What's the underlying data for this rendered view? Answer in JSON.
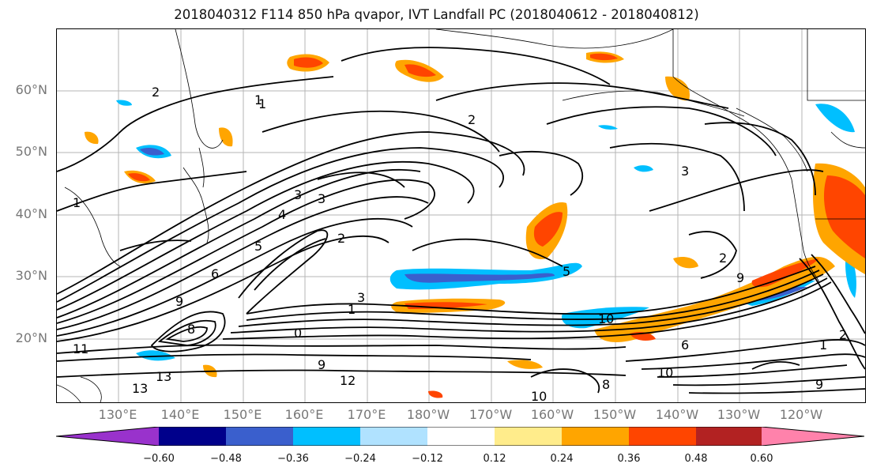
{
  "title": "2018040312 F114 850 hPa qvapor, IVT Landfall PC (2018040612 - 2018040812)",
  "map": {
    "lat_labels": [
      "60°N",
      "50°N",
      "40°N",
      "30°N",
      "20°N"
    ],
    "lon_labels": [
      "130°E",
      "140°E",
      "150°E",
      "160°E",
      "170°E",
      "180°W",
      "170°W",
      "160°W",
      "150°W",
      "140°W",
      "130°W",
      "120°W"
    ],
    "contour_labels": [
      "1",
      "2",
      "1",
      "2",
      "3",
      "3",
      "4",
      "5",
      "2",
      "6",
      "5",
      "8",
      "9",
      "9",
      "10",
      "11",
      "13",
      "13",
      "12",
      "9",
      "10",
      "8",
      "10",
      "6",
      "1",
      "2",
      "3",
      "1",
      "2",
      "1",
      "0",
      "9",
      "3"
    ]
  },
  "colorbar": {
    "ticks": [
      "−0.60",
      "−0.48",
      "−0.36",
      "−0.24",
      "−0.12",
      "0.12",
      "0.24",
      "0.36",
      "0.48",
      "0.60"
    ],
    "colors": [
      "#9932cc",
      "#00008b",
      "#3a5fcd",
      "#00bfff",
      "#b0e2ff",
      "#ffffff",
      "#ffec8b",
      "#ffa500",
      "#ff4500",
      "#b22222",
      "#ff82ab"
    ]
  }
}
